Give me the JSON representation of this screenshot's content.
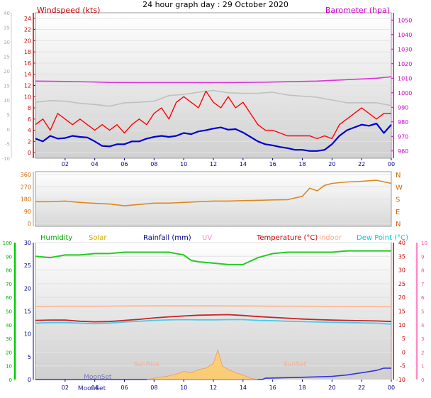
{
  "page": {
    "title": "24 hour graph day : 29 October 2020"
  },
  "chart_data": [
    {
      "type": "line",
      "panel": "wind-barometer",
      "x_ticks": [
        "02",
        "04",
        "06",
        "08",
        "10",
        "12",
        "14",
        "16",
        "18",
        "20",
        "22",
        "00"
      ],
      "x_range_hours": [
        0,
        24
      ],
      "left_axis": {
        "label": "Windspeed (kts)",
        "color": "#cc0000",
        "range": [
          -1,
          25
        ],
        "ticks": [
          "24",
          "22",
          "20",
          "18",
          "16",
          "14",
          "12",
          "10",
          "8",
          "6",
          "4",
          "2",
          "0"
        ]
      },
      "outer_left_axis": {
        "range": [
          -10,
          40
        ],
        "ticks": [
          "40",
          "35",
          "30",
          "25",
          "20",
          "15",
          "10",
          "5",
          "0",
          "-5",
          "-10"
        ]
      },
      "right_axis": {
        "label": "Barometer (hpa)",
        "color": "#cc00cc",
        "range": [
          955,
          1055
        ],
        "ticks": [
          "1050",
          "1040",
          "1030",
          "1020",
          "1010",
          "1000",
          "990",
          "980",
          "970",
          "960"
        ]
      },
      "series": [
        {
          "key": "barometer",
          "color": "#dd33dd",
          "x": [
            0,
            2,
            4,
            5,
            7,
            9,
            11,
            13,
            15,
            17,
            19,
            21,
            23,
            24
          ],
          "values": [
            1008,
            1007.8,
            1007.4,
            1007.1,
            1007,
            1007,
            1007,
            1007,
            1007.2,
            1007.6,
            1008,
            1009,
            1010,
            1011
          ]
        },
        {
          "key": "wind-gust-upper",
          "color": "#c0c0c0",
          "x": [
            0,
            1,
            2,
            3,
            4,
            5,
            6,
            7,
            8,
            9,
            10,
            11,
            12,
            13,
            14,
            15,
            16,
            17,
            18,
            19,
            20,
            21,
            22,
            23,
            24
          ],
          "values": [
            9,
            9.3,
            9.2,
            8.8,
            8.6,
            8.3,
            8.9,
            9,
            9.2,
            10.2,
            10.4,
            10.8,
            11.1,
            10.7,
            10.6,
            10.6,
            10.8,
            10.3,
            10.1,
            9.9,
            9.4,
            8.9,
            8.9,
            8.9,
            8.4
          ]
        },
        {
          "key": "wind-gust",
          "color": "#ff0000",
          "x": [
            0,
            0.5,
            1,
            1.5,
            2,
            2.5,
            3,
            3.5,
            4,
            4.5,
            5,
            5.5,
            6,
            6.5,
            7,
            7.5,
            8,
            8.5,
            9,
            9.5,
            10,
            10.5,
            11,
            11.5,
            12,
            12.5,
            13,
            13.5,
            14,
            14.5,
            15,
            15.5,
            16,
            16.5,
            17,
            17.5,
            18,
            18.5,
            19,
            19.5,
            20,
            20.5,
            21,
            21.5,
            22,
            22.5,
            23,
            23.5,
            24
          ],
          "values": [
            5,
            6,
            4,
            7,
            6,
            5,
            6,
            5,
            4,
            5,
            4,
            5,
            3.5,
            5,
            6,
            5,
            7,
            8,
            6,
            9,
            10,
            9,
            8,
            11,
            9,
            8,
            10,
            8,
            9,
            7,
            5,
            4,
            4,
            3.5,
            3,
            3,
            3,
            3,
            2.5,
            3,
            2.5,
            5,
            6,
            7,
            8,
            7,
            6,
            7,
            7
          ]
        },
        {
          "key": "wind-average",
          "color": "#0000cc",
          "x": [
            0,
            0.5,
            1,
            1.5,
            2,
            2.5,
            3,
            3.5,
            4,
            4.5,
            5,
            5.5,
            6,
            6.5,
            7,
            7.5,
            8,
            8.5,
            9,
            9.5,
            10,
            10.5,
            11,
            11.5,
            12,
            12.5,
            13,
            13.5,
            14,
            14.5,
            15,
            15.5,
            16,
            16.5,
            17,
            17.5,
            18,
            18.5,
            19,
            19.5,
            20,
            20.5,
            21,
            21.5,
            22,
            22.5,
            23,
            23.5,
            24
          ],
          "values": [
            2.5,
            2,
            3,
            2.5,
            2.6,
            3,
            2.8,
            2.7,
            2,
            1.2,
            1.1,
            1.5,
            1.5,
            2,
            2,
            2.5,
            2.8,
            3,
            2.8,
            3,
            3.5,
            3.3,
            3.8,
            4,
            4.3,
            4.5,
            4.1,
            4.2,
            3.6,
            2.8,
            2,
            1.5,
            1.3,
            1,
            0.8,
            0.5,
            0.5,
            0.3,
            0.3,
            0.5,
            1.5,
            3,
            4,
            4.5,
            5,
            4.8,
            5.2,
            3.5,
            5
          ]
        }
      ]
    },
    {
      "type": "line",
      "panel": "wind-direction",
      "x_range_hours": [
        0,
        24
      ],
      "left_axis": {
        "range": [
          0,
          360
        ],
        "ticks": [
          "360",
          "270",
          "180",
          "90",
          "0"
        ]
      },
      "right_axis": {
        "ticks": [
          "N",
          "W",
          "S",
          "E",
          "N"
        ]
      },
      "series": [
        {
          "key": "wind-direction",
          "color": "#dd8822",
          "x": [
            0,
            1,
            2,
            3,
            4,
            5,
            6,
            7,
            8,
            9,
            10,
            11,
            12,
            13,
            14,
            15,
            16,
            17,
            18,
            18.5,
            19,
            19.5,
            20,
            21,
            22,
            23,
            24
          ],
          "values": [
            160,
            160,
            165,
            155,
            148,
            143,
            130,
            140,
            150,
            150,
            155,
            160,
            165,
            165,
            168,
            170,
            173,
            175,
            200,
            260,
            240,
            280,
            295,
            305,
            310,
            318,
            295
          ]
        }
      ]
    },
    {
      "type": "line",
      "panel": "temperature-humidity-rain",
      "x_ticks": [
        "02",
        "04",
        "06",
        "08",
        "10",
        "12",
        "14",
        "16",
        "18",
        "20",
        "22",
        "00"
      ],
      "x_range_hours": [
        0,
        24
      ],
      "legend": [
        {
          "label": "Humidity",
          "color": "#00aa00"
        },
        {
          "label": "Solar",
          "color": "#ccaa00"
        },
        {
          "label": "Rainfall (mm)",
          "color": "#000088"
        },
        {
          "label": "UV",
          "color": "#ff88cc"
        },
        {
          "label": "Temperature (°C)",
          "color": "#cc0000"
        },
        {
          "label": "Indoor",
          "color": "#ffaa88"
        },
        {
          "label": "Dew Point (°C)",
          "color": "#00cccc"
        }
      ],
      "humidity_axis": {
        "range": [
          0,
          100
        ],
        "ticks": [
          "100",
          "90",
          "80",
          "70",
          "60",
          "50",
          "40",
          "30",
          "20",
          "10",
          "0"
        ]
      },
      "rain_axis": {
        "range": [
          0,
          30
        ],
        "ticks": [
          "30",
          "25",
          "20",
          "15",
          "10",
          "5",
          "0"
        ]
      },
      "temperature_axis": {
        "range": [
          -10,
          40
        ],
        "ticks": [
          "40",
          "35",
          "30",
          "25",
          "20",
          "15",
          "10",
          "5",
          "0",
          "-5",
          "-10"
        ]
      },
      "uv_axis": {
        "range": [
          0,
          10
        ],
        "ticks": [
          "10",
          "9",
          "8",
          "7",
          "6",
          "5",
          "4",
          "3",
          "2",
          "1",
          "0"
        ]
      },
      "annotations": [
        {
          "text": "SunRise",
          "x": 7.5,
          "color": "#ffaa88"
        },
        {
          "text": "SunSet",
          "x": 17.5,
          "color": "#ffaa88"
        },
        {
          "text": "MoonSet",
          "x": 4.2,
          "color": "#7777bb"
        },
        {
          "text": "MoonSet",
          "x": 3.8,
          "color": "#2222aa"
        }
      ],
      "series": [
        {
          "key": "humidity",
          "color": "#22cc22",
          "x": [
            0,
            1,
            2,
            3,
            4,
            5,
            6,
            7,
            8,
            9,
            10,
            10.5,
            11,
            12,
            13,
            14,
            15,
            16,
            17,
            18,
            19,
            20,
            21,
            22,
            23,
            24
          ],
          "values": [
            90,
            89,
            91,
            91,
            92,
            92,
            93,
            93,
            93,
            93,
            91,
            87,
            86,
            85,
            84,
            84,
            89,
            92,
            93,
            93,
            93,
            93,
            94,
            94,
            94,
            94
          ]
        },
        {
          "key": "indoor-temperature",
          "color": "#ffb898",
          "x": [
            0,
            4,
            8,
            12,
            16,
            20,
            24
          ],
          "values": [
            16.7,
            16.8,
            16.9,
            16.9,
            16.8,
            16.7,
            16.6
          ]
        },
        {
          "key": "temperature",
          "color": "#cc2222",
          "x": [
            0,
            1,
            2,
            3,
            4,
            5,
            6,
            7,
            8,
            9,
            10,
            11,
            12,
            13,
            14,
            15,
            16,
            17,
            18,
            19,
            20,
            21,
            22,
            23,
            24
          ],
          "values": [
            11.6,
            11.7,
            11.7,
            11.3,
            11.1,
            11.2,
            11.6,
            12,
            12.5,
            12.9,
            13.2,
            13.5,
            13.6,
            13.7,
            13.4,
            13,
            12.7,
            12.4,
            12.1,
            11.9,
            11.7,
            11.6,
            11.5,
            11.4,
            11.2
          ]
        },
        {
          "key": "dew-point",
          "color": "#44ccee",
          "x": [
            0,
            1,
            2,
            3,
            4,
            5,
            6,
            7,
            8,
            9,
            10,
            11,
            12,
            13,
            14,
            15,
            16,
            17,
            18,
            19,
            20,
            21,
            22,
            23,
            24
          ],
          "values": [
            10.6,
            10.8,
            10.8,
            10.6,
            10.4,
            10.6,
            11,
            11.3,
            11.6,
            11.8,
            11.9,
            11.8,
            11.8,
            11.9,
            11.9,
            11.6,
            11.5,
            11.3,
            11.2,
            11,
            10.9,
            10.8,
            10.7,
            10.6,
            10.2
          ]
        },
        {
          "key": "rainfall",
          "color": "#3333dd",
          "x": [
            0,
            15.3,
            15.5,
            18,
            20,
            21,
            22,
            23,
            23.5,
            24
          ],
          "values": [
            0,
            0,
            0.3,
            0.5,
            0.7,
            1,
            1.5,
            2,
            2.5,
            2.5
          ]
        },
        {
          "key": "solar",
          "color": "#ffcc66",
          "x": [
            7.5,
            8,
            9,
            9.5,
            10,
            10.5,
            11,
            11.5,
            12,
            12.3,
            12.6,
            13,
            13.5,
            14,
            14.5,
            15
          ],
          "values": [
            0,
            0.3,
            0.8,
            1.2,
            1.8,
            1.5,
            2.2,
            2.5,
            3.5,
            6.5,
            3,
            2.2,
            1.5,
            1,
            0.3,
            0
          ]
        }
      ]
    }
  ]
}
